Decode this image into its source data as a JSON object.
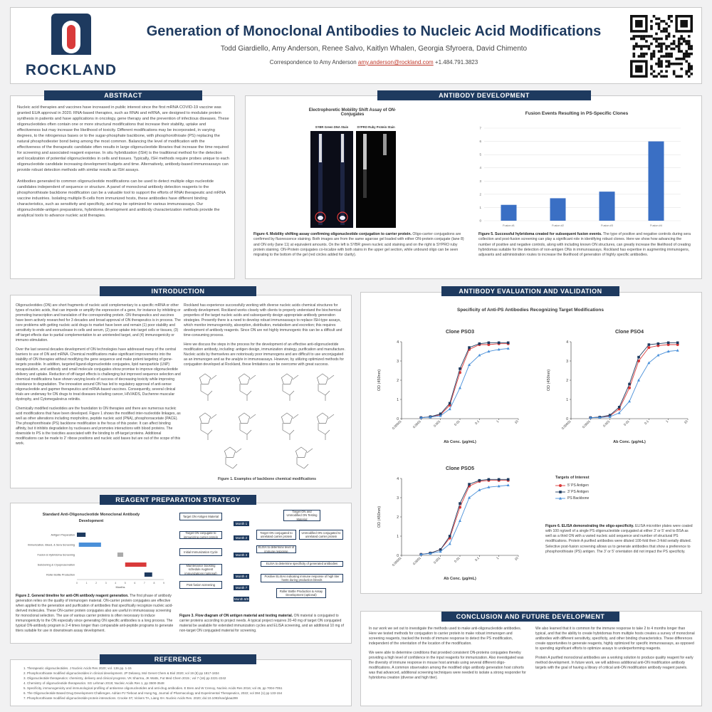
{
  "header": {
    "logo_text": "ROCKLAND",
    "title": "Generation of Monoclonal Antibodies to Nucleic Acid Modifications",
    "authors": "Todd Giardiello, Amy Anderson, Renee Salvo, Kaitlyn Whalen, Georgia Sfyroera, David Chimento",
    "correspondence_prefix": "Correspondence to Amy Anderson",
    "email": "amy.anderson@rockland.com",
    "phone": "+1.484.791.3823"
  },
  "abstract": {
    "heading": "ABSTRACT",
    "p1": "Nucleic acid therapies and vaccines have increased in public interest since the first mRNA COVID-19 vaccine was granted EUA approval in 2020. RNA-based therapies, such as RNAi and mRNA, are designed to modulate protein synthesis in patients and have applications in oncology, gene therapy and the prevention of infectious diseases. These oligonucleotides often contain one or more structural modifications that increase their stability, uptake and effectiveness but may increase the likelihood of toxicity. Different modifications may be incorporated, in varying degrees, to the nitrogenous bases or to the sugar-phosphate backbone, with phosphorothioate (PS) replacing the natural phosphodiester bond being among the most common. Balancing the level of modification with the effectiveness of the therapeutic candidate often results in large oligonucleotide libraries that increase the time required for screening and associated reagent expense. In situ hybridization (ISH) is the traditional method for the detection and localization of potential oligonucleotides in cells and tissues. Typically, ISH methods require probes unique to each oligonucleotide candidate increasing development budgets and time. Alternatively, antibody-based immunoassays can provide robust detection methods with similar results as ISH assays.",
    "p2": "Antibodies generated to common oligonucleotide modifications can be used to detect multiple oligo nucleotide candidates independent of sequence or structure. A panel of monoclonal antibody detection reagents to the phosphorothioate backbone modification can be a valuable tool to support the efforts of RNAi therapeutic and mRNA vaccine industries. Isolating multiple B-cells from immunized hosts, these antibodies have different binding characteristics, such as sensitivity and specificity, and may be optimized for various immunoassays. Our oligonucleotide-antigen preparations, hybridoma development and antibody characterization methods provide the analytical tools to advance nucleic acid therapies."
  },
  "antibody_development": {
    "heading": "ANTIBODY DEVELOPMENT",
    "gel_title": "Electrophoretic Mobility Shift Assay of ON-Conjugates",
    "gel_label_left": "SYBR Green DNA Stain",
    "gel_label_right": "SYPRO Ruby Protein Stain",
    "fig4_bold": "Figure 4. Mobility shifting assay confirming oligonucleotide conjugation to carrier protein.",
    "fig4_text": " Oligo-carrier conjugations are confirmed by fluorescence staining. Both images are from the same agarose gel loaded with either ON-protein conjugate (lane 8) and ON only (lane 11) at equivalent amounts. On the left is SYBR green nucleic acid staining and on the right is SYPRO ruby protein staining. ON-Protein conjugates co-localize with both stains in the upper gel section, while unbound oligo can be seen migrating to the bottom of the gel (red circles added for clarity).",
    "fig5_bold": "Figure 5. Successful hybridoma created for subsequent fusion events.",
    "fig5_text": " The type of positive and negative controls during sera collection and post-fusion screening can play a significant role in identifying robust clones. Here we show how advancing the number of positive and negative controls, along with including known ON structures, can greatly increase the likelihood of creating hybridomas suitable for the detection of non-antigen ONs in immunoassays. Rockland has expertise in augmenting immunogens, adjuvants and administration routes to increase the likelihood of generation of highly specific antibodies."
  },
  "introduction": {
    "heading": "INTRODUCTION",
    "col1_p1": "Oligonucleotides (ON) are short fragments of nucleic acid complementary to a specific mRNA or other types of nucleic acids, that can impede or amplify the expression of a gene, for instance by inhibiting or promoting transcription and translation of the corresponding protein. ON therapeutics and vaccines have been actively researched for 3 decades and broad approval of ON therapeutics is in process. The core problems with getting nucleic acid drugs to market have been and remain (1) poor stability and sensitivity to endo and exonuclease in cells and serum, (2) poor uptake into target cells or tissues, (3) off target effects due to partial complementation to an unintended target, and (4) immunogenicity or immuno-stimulation.",
    "col1_p2": "Over the last several decades development of ON technologies have addressed many of the central barriers to use of ON and mRNA. Chemical modifications make significant improvements into the stability of ON therapies without modifying the gene sequence and make potent targeting of gene-targets possible. In addition, targeted ligand-oligonucleotide conjugates, lipid nanoparticle (LNP) encapsulation, and antibody and small molecule conjugates show promise to improve oligonucleotide delivery and uptake. Reduction of off-target effects is challenging but improved sequence selection and chemical modifications have shown varying levels of success of decreasing toxicity while improving resistance to degradation. The innovation around ON has led to regulatory approval of anti-sense oligonucleotide and gapmer therapeutics and mRNA-based vaccines. Consequently, several clinical trials are underway for ON drugs to treat diseases including cancer, HIV/AIDS, Duchenne muscular dystrophy, and Cytomegalovirus retinitis.",
    "col1_p3": "Chemically modified nucleotides are the foundation to ON therapies and there are numerous nucleic acid modifications that have been developed. Figure 1 shows the modified inter-nucleotide linkages, as well as other alterations including morpholino, peptide nucleic acid (PNA), phosphoroacetate (PACE). The phosphorothioate (PS) backbone modification is the focus of this poster. It can affect binding affinity, but it inhibits degradation by nucleases and promotes interactions with blood proteins. The downside to PS is the toxicities associated with the binding to off-target proteins. Additional modifications can be made to 2' ribose positions and nucleic acid bases but are out of the scope of this work.",
    "col2_p1": "Rockland has experience successfully working with diverse nucleic acids chemical structures for antibody development. Rockland works closely with clients to properly understand the biochemical properties of the target nucleic acids and subsequently design appropriate antibody generation strategies. Presently there is a need to develop robust immunoassays to replace ISH-type assays, which monitor immunogenicity, absorption, distribution, metabolism and excretion; this requires development of antibody reagents. Since ON are not highly immunogenic this can be a difficult and time-consuming process.",
    "col2_p2": "Here we discuss the steps in the process for the development of an effective anti-oligonucleotide modification antibody, including: antigen design, immunization strategy, purification and manufacture. Nucleic acids by themselves are notoriously poor immunogens and are difficult to use unconjugated as an immunogen and as the analyte in immunoassays. However, by utilizing optimized methods for conjugation developed at Rockland, these limitations can be overcome with great success.",
    "fig1_caption": "Figure 1. Examples of backbone chemical modifications"
  },
  "reagent": {
    "heading": "REAGENT PREPARATION STRATEGY",
    "gantt_title": "Standard Anti-Oligonucleotide Monoclonal Antibody Development",
    "gantt_tasks": [
      "Antigen Preparation",
      "Immunization, Bleed, & Sera Screening",
      "Fusion & Hybridoma Screening",
      "Subcloning & Cryopreservation",
      "Roller Bottle Production"
    ],
    "gantt_xlabel": "Months",
    "gantt_ticks": [
      "0",
      "1",
      "2",
      "3",
      "4",
      "5",
      "6",
      "7",
      "8",
      "9"
    ],
    "fig2_bold": "Figure 2. General timeline for anti-ON antibody reagent generation.",
    "fig2_text": " The first phase of antibody generation relies on the quality of immunogen material. ON-carrier protein conjugates are effective when applied to the generation and purification of antibodies that specifically recognize nucleic acid-derived molecules. These ON-carrier protein conjugates also are useful in immunoassay screening for monoclonal selection. The use of various carrier proteins is often necessary to induce immunogenicity to the ON especially since generating ON specific antibodies is a long process. The typical ON-antibody program is 2-4 times longer than comparable anti-peptide programs to generate titers suitable for use in downstream assay development.",
    "flow_left": [
      "Target ON Antigen Material",
      "Target ON conjugate to immunizing carrier protein",
      "Initial Immunization Cycle",
      "Maintenance boosting schedule Augment immunizations (optional)",
      "Post fusion screening"
    ],
    "flow_months": [
      "Month 1",
      "Month 2",
      "Month 3",
      "Month 4",
      "Month 7",
      "Month 8/9"
    ],
    "flow_right": [
      "Target ON and Unmodified ON Testing Material",
      "Target ON conjugated to unrelated carrier protein",
      "Unmodified ON conjugated to unrelated carrier protein",
      "ELISA to determine level of immune response",
      "ELISA to determine specificity of generated antibodies",
      "Positive ELISAs indicating immune response of high titer hosts during production bleeds",
      "Roller Bottle Production & Assay Development (optional)"
    ],
    "fig3_bold": "Figure 3. Flow diagram of ON antigen material and testing material.",
    "fig3_text": " ON material is conjugated to carrier proteins according to project needs. A typical project requires 20-40 mg of target ON conjugated material be available for extended immunization cycles and ELISA screening, and an additional 10 mg of non-target ON conjugated material for screening."
  },
  "references": {
    "heading": "REFERENCES",
    "items": [
      "Therapeutic oligonucleotides. J Nucleic Acids Res 2020; vol. 136 pp. 1-15",
      "Phosphorothioate modified oligonucleotides in clinical development. JP Delaney, Mol Genet Chem & Biol 2020; vol 19 (8) pp 1817-1834",
      "Oligonucleotide therapeutics: chemistry, delivery and clinical progress. VK Sharma, JK Watts, Fut Med Chem 2015 ; vol 7 (16) pp 2221-2242",
      "Chemistry of oligonucleotide therapeutics. SG Lehman 2019; Nucleic Acids Res 1, pp 3500-3548",
      "Specificity, immunogenicity and immunological profiling of antisense oligonucleotides and anti-drug antibodies. E Bren and W Crenoy, Nucleic Acids Res 2016; vol 46, pp 7004-7051",
      "The Oligonucleotide Based Drug Development Challenges. Adrian PJ Tiebout and Hung Ng, Journal of Pharmacology and Experimental Therapeutics, 2022; vol 384 (1) pp 133-154",
      "Phosphorothioate modified oligonucleotide-protein interactions. Crooke ST, Vickers TA, Liang XH. Nucleic Acids Res. 2020; doi:10.1093/nar/gkaa299"
    ]
  },
  "evaluation": {
    "heading": "ANTIBODY EVALUATION AND VALIDATION",
    "chart_title": "Specificity of Anti-PS Antibodies Recognizing Target Modifications",
    "legend_title": "Targets of Interest",
    "fig6_bold": "Figure 6. ELISA demonstrating the oligo-specificity.",
    "fig6_text": " ELISA microtiter plates were coated with 100 ng/well of a single PS oligonucleotide conjugated at either 3' or 5' end to BSA as well as a third ON with a varied nucleic acid sequence and number of structural PS modifications. Protein A purified antibodies were diluted 100-fold then 3-fold serially diluted. Selective post-fusion screening allows us to generate antibodies that show a preference to phosphorothioate (PS) antigen. The 3' or 5' orientation did not impact the PS specificity."
  },
  "conclusion": {
    "heading": "CONCLUSION AND FUTURE DEVELOPMENT",
    "col1_p1": "In our work we set out to investigate the methods used to make anti-oligonucleotide antibodies. Here we tested methods for conjugation to carrier protein to make robust immunogen and screening reagents, tracked the trends of immune response to detect the PS modification, independent of the orientation of the location of the modification.",
    "col1_p2": "We were able to determine conditions that provided consistent ON-proteins conjugates thereby providing a high level of confidence in the input reagents for immunization. Also investigated was the diversity of immune response in mouse host animals using several different oligo-modifications. A common observation among the modified oligo antibody generation host cohorts was that advanced, additional screening techniques were needed to isolate a strong responder for hybridoma creation (diverse and high titer).",
    "col2_p1": "We also learned that it is common for the immune response to take 2 to 4 months longer than typical, and that the ability to create hybridomas from multiple hosts creates a survey of monoclonal antibodies with different sensitivity, specificity, and other binding characteristics. These differences create opportunities to generate reagents, highly optimized for specific immunoassays, as opposed to spending significant efforts to optimize assays to underperforming reagents.",
    "col2_p2": "Protein A purified monoclonal antibodies are a working solution to produce quality reagent for early method development. In future work, we will address additional anti-ON modification antibody targets with the goal of having a library of critical anti-ON modification antibody reagent panels."
  },
  "chart_data": [
    {
      "type": "bar",
      "title": "Fusion Events Resulting in PS-Specific Clones",
      "categories": [
        "Fusion #1",
        "Fusion #2",
        "Fusion #3",
        "Fusion #4"
      ],
      "values": [
        1.2,
        1.7,
        2.2,
        6.0
      ],
      "ylim": [
        0,
        7
      ],
      "yticks": [
        "0",
        "1",
        "2",
        "3",
        "4",
        "5",
        "6",
        "7"
      ],
      "color": "#3a6fc4",
      "grid": true
    },
    {
      "type": "line",
      "title": "Clone PSO3",
      "xlabel": "Ab Conc. (µg/mL)",
      "ylabel": "OD (450nm)",
      "log_x": true,
      "x": [
        0.0001,
        0.0003,
        0.001,
        0.003,
        0.01,
        0.03,
        0.1,
        0.3,
        1,
        3
      ],
      "xticks": [
        "0.00001",
        "0.0001",
        "0.001",
        "0.01",
        "0.1",
        "1",
        "10"
      ],
      "ylim": [
        0,
        4
      ],
      "yticks": [
        "0",
        "1",
        "2",
        "3",
        "4"
      ],
      "series": [
        {
          "name": "5' PS Antigen",
          "color": "#d93a3a",
          "marker": "circle",
          "values": [
            0.05,
            0.1,
            0.2,
            0.7,
            2.4,
            3.6,
            3.85,
            3.85,
            3.9,
            3.9
          ]
        },
        {
          "name": "3' PS Antigen",
          "color": "#1e3a5f",
          "marker": "square",
          "values": [
            0.05,
            0.1,
            0.25,
            0.8,
            2.6,
            3.7,
            3.9,
            3.95,
            3.95,
            3.95
          ]
        },
        {
          "name": "PS Backbone",
          "color": "#4a90d9",
          "marker": "triangle",
          "values": [
            0.05,
            0.08,
            0.15,
            0.5,
            1.6,
            2.8,
            3.3,
            3.5,
            3.6,
            3.65
          ]
        }
      ]
    },
    {
      "type": "line",
      "title": "Clone PSO4",
      "xlabel": "Ab Conc. (µg/mL)",
      "ylabel": "OD (450nm)",
      "log_x": true,
      "x": [
        0.0001,
        0.0003,
        0.001,
        0.003,
        0.01,
        0.03,
        0.1,
        0.3,
        1,
        3
      ],
      "xticks": [
        "0.00001",
        "0.0001",
        "0.001",
        "0.01",
        "0.1",
        "1",
        "10"
      ],
      "ylim": [
        0,
        4
      ],
      "yticks": [
        "0",
        "1",
        "2",
        "3",
        "4"
      ],
      "series": [
        {
          "name": "5' PS Antigen",
          "color": "#d93a3a",
          "marker": "circle",
          "values": [
            0.05,
            0.08,
            0.15,
            0.5,
            1.6,
            3.0,
            3.7,
            3.8,
            3.85,
            3.85
          ]
        },
        {
          "name": "3' PS Antigen",
          "color": "#1e3a5f",
          "marker": "square",
          "values": [
            0.05,
            0.08,
            0.18,
            0.6,
            1.8,
            3.2,
            3.85,
            3.9,
            3.95,
            3.95
          ]
        },
        {
          "name": "PS Backbone",
          "color": "#4a90d9",
          "marker": "triangle",
          "values": [
            0.05,
            0.06,
            0.1,
            0.3,
            0.9,
            2.0,
            2.9,
            3.3,
            3.5,
            3.55
          ]
        }
      ]
    },
    {
      "type": "line",
      "title": "Clone PSO5",
      "xlabel": "Ab Conc. (µg/mL)",
      "ylabel": "OD (450nm)",
      "log_x": true,
      "x": [
        0.0001,
        0.0003,
        0.001,
        0.003,
        0.01,
        0.03,
        0.1,
        0.3,
        1,
        3
      ],
      "xticks": [
        "0.00001",
        "0.0001",
        "0.001",
        "0.01",
        "0.1",
        "1",
        "10"
      ],
      "ylim": [
        0,
        4
      ],
      "yticks": [
        "0",
        "1",
        "2",
        "3",
        "4"
      ],
      "series": [
        {
          "name": "5' PS Antigen",
          "color": "#d93a3a",
          "marker": "circle",
          "values": [
            0.05,
            0.12,
            0.3,
            0.9,
            2.5,
            3.6,
            3.85,
            3.9,
            3.9,
            3.9
          ]
        },
        {
          "name": "3' PS Antigen",
          "color": "#1e3a5f",
          "marker": "square",
          "values": [
            0.05,
            0.12,
            0.3,
            1.0,
            2.7,
            3.7,
            3.9,
            3.95,
            3.95,
            3.95
          ]
        },
        {
          "name": "PS Backbone",
          "color": "#4a90d9",
          "marker": "triangle",
          "values": [
            0.05,
            0.1,
            0.2,
            0.6,
            1.8,
            3.0,
            3.4,
            3.55,
            3.6,
            3.65
          ]
        }
      ]
    }
  ],
  "gantt_data": {
    "type": "bar",
    "bars": [
      {
        "start": 0,
        "end": 0.9,
        "color": "#1e3a5f"
      },
      {
        "start": 0.2,
        "end": 2.5,
        "color": "#4a90d9"
      },
      {
        "start": 4.2,
        "end": 4.8,
        "color": "#aaaaaa"
      },
      {
        "start": 5.0,
        "end": 7.2,
        "color": "#d93a3a"
      },
      {
        "start": 7.0,
        "end": 7.8,
        "color": "#1e3a5f"
      }
    ],
    "xlim": [
      0,
      9
    ]
  }
}
